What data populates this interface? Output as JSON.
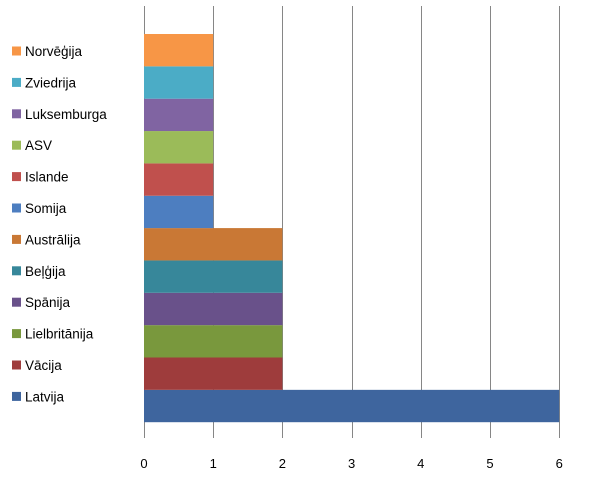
{
  "chart_data": {
    "type": "bar",
    "orientation": "horizontal",
    "categories": [
      "Latvija",
      "Vācija",
      "Lielbritānija",
      "Spānija",
      "Beļģija",
      "Austrālija",
      "Somija",
      "Islande",
      "ASV",
      "Luksemburga",
      "Zviedrija",
      "Norvēģija"
    ],
    "values": [
      6,
      2,
      2,
      2,
      2,
      2,
      1,
      1,
      1,
      1,
      1,
      1
    ],
    "colors": [
      "#3E659E",
      "#9E3C3C",
      "#79983D",
      "#69518A",
      "#37879A",
      "#C97835",
      "#4D7EC0",
      "#C0504D",
      "#9BBB59",
      "#8064A2",
      "#4BACC6",
      "#F79646"
    ],
    "title": "",
    "xlabel": "",
    "ylabel": "",
    "xlim": [
      0,
      6
    ],
    "x_ticks": [
      0,
      1,
      2,
      3,
      4,
      5,
      6
    ],
    "grid": "vertical",
    "legend": "left",
    "legend_order": [
      "Norvēģija",
      "Zviedrija",
      "Luksemburga",
      "ASV",
      "Islande",
      "Somija",
      "Austrālija",
      "Beļģija",
      "Spānija",
      "Lielbritānija",
      "Vācija",
      "Latvija"
    ]
  }
}
